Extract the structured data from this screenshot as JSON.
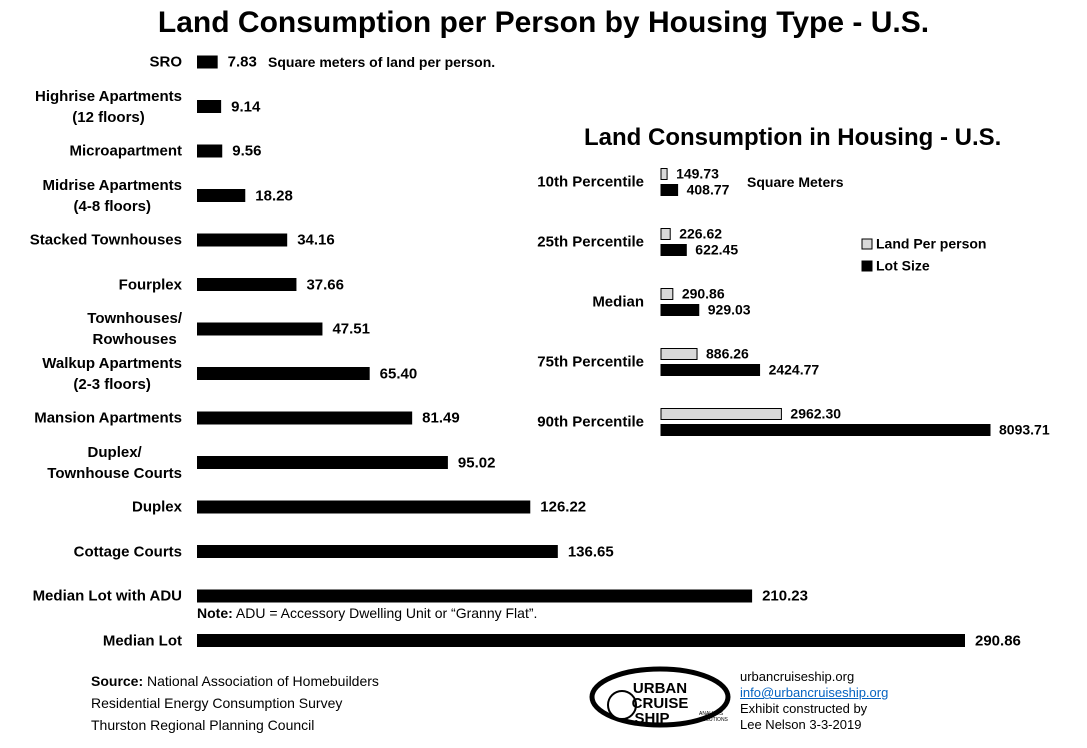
{
  "chart_data": [
    {
      "type": "bar",
      "orientation": "horizontal",
      "title": "Land Consumption per Person by Housing Type - U.S.",
      "unit_note": "Square meters of land per person.",
      "note_label": "Note:",
      "note": "ADU = Accessory Dwelling Unit or “Granny Flat”.",
      "categories": [
        "SRO",
        "Highrise Apartments\n(12 floors)",
        "Microapartment",
        "Midrise Apartments\n(4-8 floors)",
        "Stacked Townhouses",
        "Fourplex",
        "Townhouses/\nRowhouses",
        "Walkup Apartments\n(2-3 floors)",
        "Mansion Apartments",
        "Duplex/\nTownhouse Courts",
        "Duplex",
        "Cottage Courts",
        "Median Lot with ADU",
        "Median Lot"
      ],
      "values": [
        7.83,
        9.14,
        9.56,
        18.28,
        34.16,
        37.66,
        47.51,
        65.4,
        81.49,
        95.02,
        126.22,
        136.65,
        210.23,
        290.86
      ],
      "value_labels": [
        "7.83",
        "9.14",
        "9.56",
        "18.28",
        "34.16",
        "37.66",
        "47.51",
        "65.40",
        "81.49",
        "95.02",
        "126.22",
        "136.65",
        "210.23",
        "290.86"
      ],
      "color": "#000000"
    },
    {
      "type": "bar",
      "orientation": "horizontal",
      "title": "Land Consumption in Housing - U.S.",
      "unit_note": "Square Meters",
      "categories": [
        "10th Percentile",
        "25th Percentile",
        "Median",
        "75th Percentile",
        "90th Percentile"
      ],
      "series": [
        {
          "name": "Land Per person",
          "color": "#d9d9d9",
          "values": [
            149.73,
            226.62,
            290.86,
            886.26,
            2962.3
          ],
          "value_labels": [
            "149.73",
            "226.62",
            "290.86",
            "886.26",
            "2962.30"
          ]
        },
        {
          "name": "Lot Size",
          "color": "#000000",
          "values": [
            408.77,
            622.45,
            929.03,
            2424.77,
            8093.71
          ],
          "value_labels": [
            "408.77",
            "622.45",
            "929.03",
            "2424.77",
            "8093.71"
          ]
        }
      ]
    }
  ],
  "footer": {
    "source_label": "Source:",
    "source_lines": [
      "National Association of Homebuilders",
      "Residential Energy Consumption Survey",
      "Thurston Regional Planning Council"
    ],
    "logo_text": [
      "URBAN",
      "CRUISE",
      "SHIP",
      "ANALYSIS",
      "SOLUTIONS"
    ],
    "credits": [
      "urbancruiseship.org",
      "info@urbancruiseship.org",
      "Exhibit constructed by",
      "Lee Nelson 3-3-2019"
    ]
  }
}
